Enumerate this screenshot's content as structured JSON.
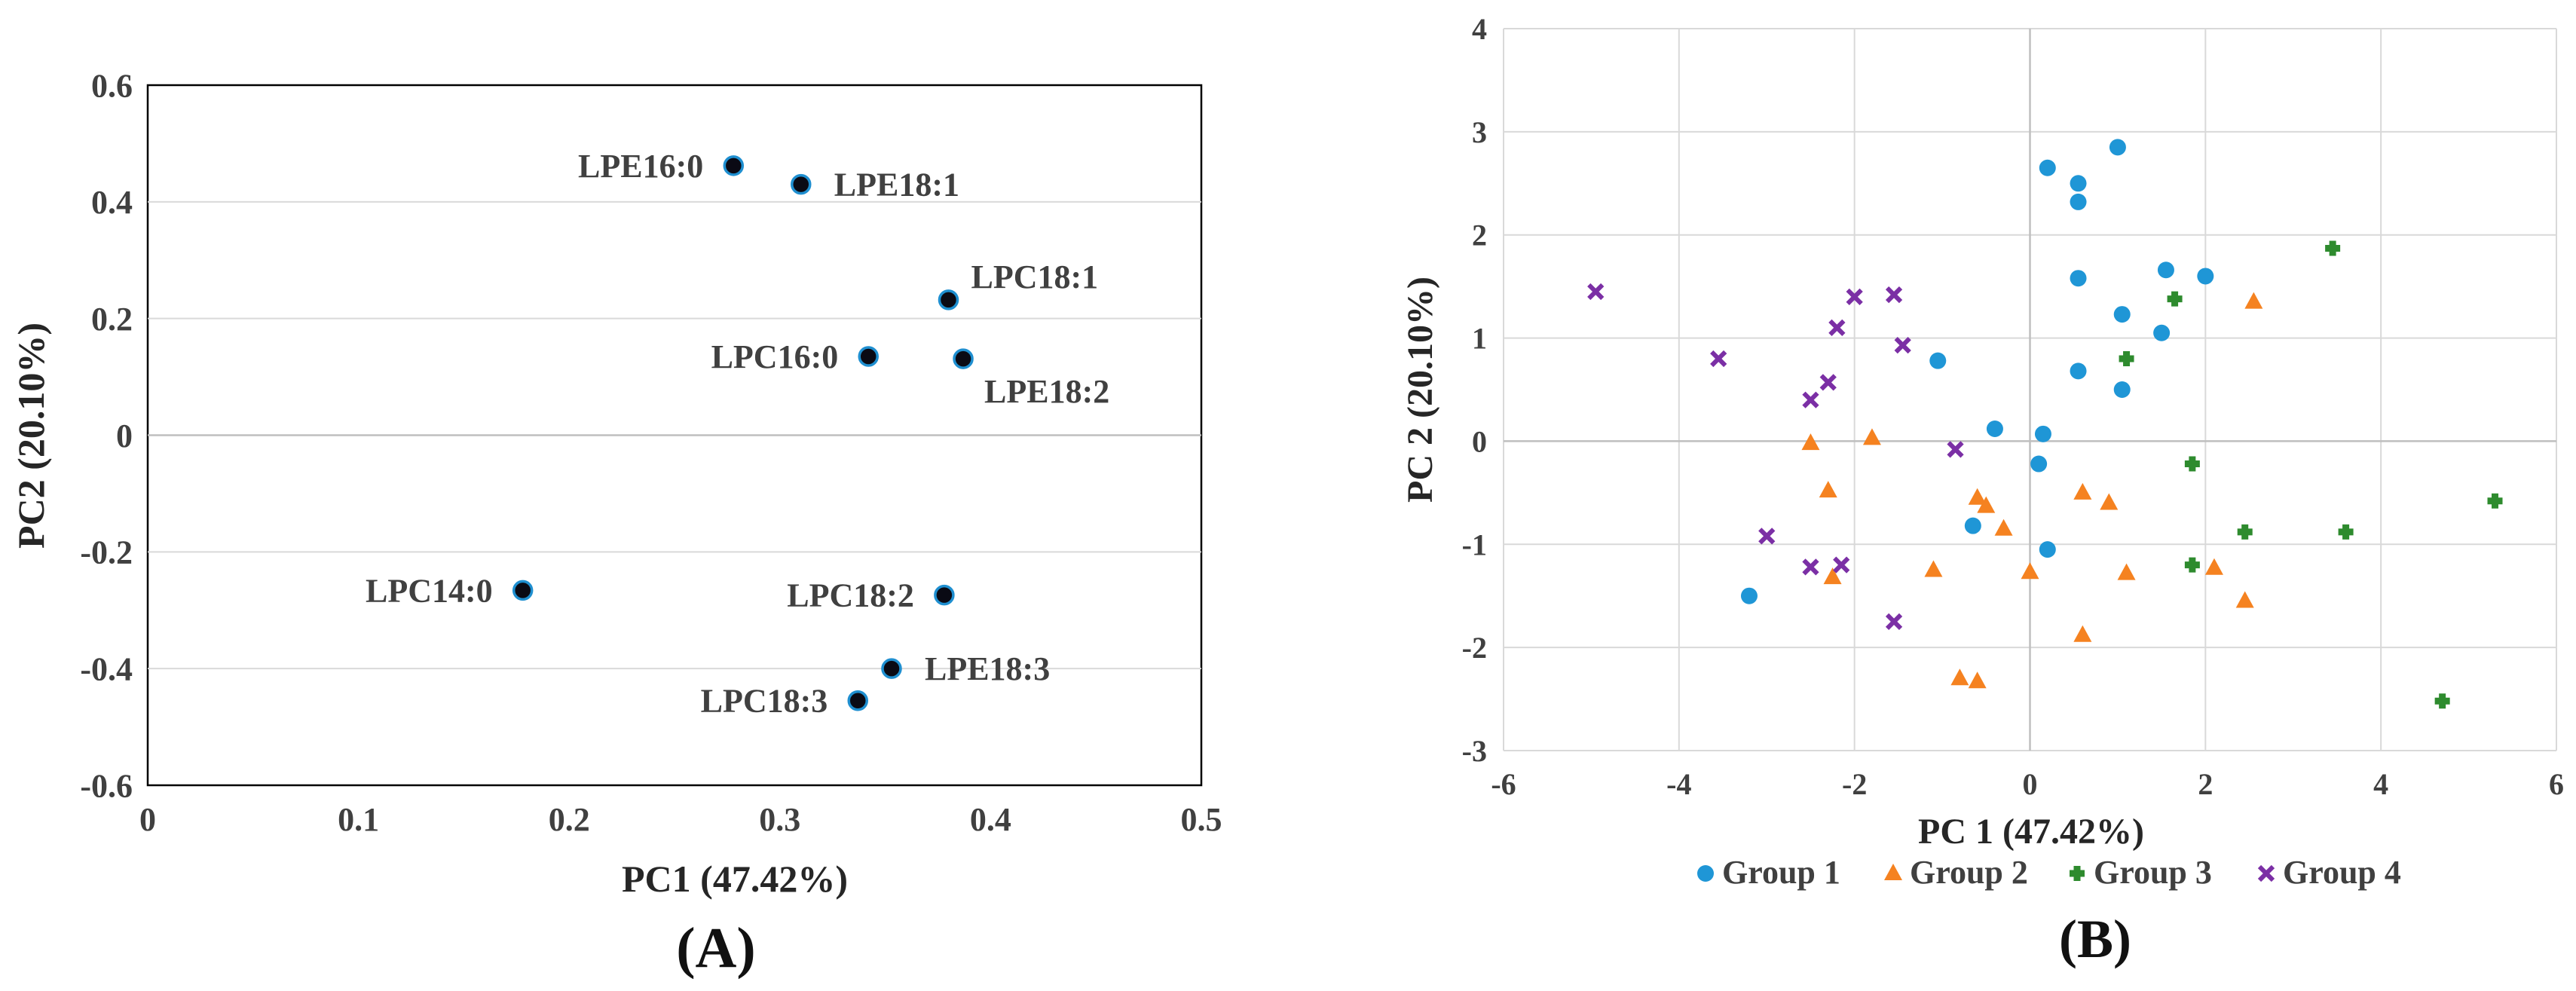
{
  "chart_data": [
    {
      "type": "scatter",
      "panel_label": "(A)",
      "xlabel": "PC1 (47.42%)",
      "ylabel": "PC2 (20.10%)",
      "xlim": [
        0,
        0.5
      ],
      "ylim": [
        -0.6,
        0.6
      ],
      "x_ticks": [
        0,
        0.1,
        0.2,
        0.3,
        0.4,
        0.5
      ],
      "x_tick_labels": [
        "0",
        "0.1",
        "0.2",
        "0.3",
        "0.4",
        "0.5"
      ],
      "y_ticks": [
        -0.6,
        -0.4,
        -0.2,
        0,
        0.2,
        0.4,
        0.6
      ],
      "y_tick_labels": [
        "-0.6",
        "-0.4",
        "-0.2",
        "0",
        "0.2",
        "0.4",
        "0.6"
      ],
      "grid": true,
      "marker_color": "#0a0a14",
      "marker_edge_color": "#1f8fd0",
      "points": [
        {
          "label": "LPE16:0",
          "x": 0.278,
          "y": 0.462,
          "label_side": "left"
        },
        {
          "label": "LPE18:1",
          "x": 0.31,
          "y": 0.43,
          "label_side": "right"
        },
        {
          "label": "LPC18:1",
          "x": 0.38,
          "y": 0.232,
          "label_side": "upper-right"
        },
        {
          "label": "LPC16:0",
          "x": 0.342,
          "y": 0.135,
          "label_side": "left"
        },
        {
          "label": "LPE18:2",
          "x": 0.387,
          "y": 0.131,
          "label_side": "lower-right"
        },
        {
          "label": "LPC14:0",
          "x": 0.178,
          "y": -0.266,
          "label_side": "left"
        },
        {
          "label": "LPC18:2",
          "x": 0.378,
          "y": -0.274,
          "label_side": "left"
        },
        {
          "label": "LPE18:3",
          "x": 0.353,
          "y": -0.4,
          "label_side": "right"
        },
        {
          "label": "LPC18:3",
          "x": 0.337,
          "y": -0.455,
          "label_side": "left"
        }
      ]
    },
    {
      "type": "scatter",
      "panel_label": "(B)",
      "xlabel": "PC 1 (47.42%)",
      "ylabel": "PC 2 (20.10%)",
      "xlim": [
        -6,
        6
      ],
      "ylim": [
        -3,
        4
      ],
      "x_ticks": [
        -6,
        -4,
        -2,
        0,
        2,
        4,
        6
      ],
      "x_tick_labels": [
        "-6",
        "-4",
        "-2",
        "0",
        "2",
        "4",
        "6"
      ],
      "y_ticks": [
        -3,
        -2,
        -1,
        0,
        1,
        2,
        3,
        4
      ],
      "y_tick_labels": [
        "-3",
        "-2",
        "-1",
        "0",
        "1",
        "2",
        "3",
        "4"
      ],
      "grid": true,
      "legend_position": "bottom",
      "series": [
        {
          "name": "Group 1",
          "marker": "circle",
          "color": "#1f96d6",
          "points": [
            [
              0.2,
              2.65
            ],
            [
              1.0,
              2.85
            ],
            [
              0.55,
              2.5
            ],
            [
              0.55,
              2.32
            ],
            [
              0.55,
              1.58
            ],
            [
              1.55,
              1.66
            ],
            [
              2.0,
              1.6
            ],
            [
              1.05,
              1.23
            ],
            [
              1.5,
              1.05
            ],
            [
              -1.05,
              0.78
            ],
            [
              0.55,
              0.68
            ],
            [
              1.05,
              0.5
            ],
            [
              -0.4,
              0.12
            ],
            [
              0.15,
              0.07
            ],
            [
              0.1,
              -0.22
            ],
            [
              -0.65,
              -0.82
            ],
            [
              0.2,
              -1.05
            ],
            [
              -3.2,
              -1.5
            ]
          ]
        },
        {
          "name": "Group 2",
          "marker": "triangle",
          "color": "#f58220",
          "points": [
            [
              2.55,
              1.35
            ],
            [
              -2.5,
              -0.02
            ],
            [
              -1.8,
              0.03
            ],
            [
              -2.3,
              -0.48
            ],
            [
              -0.6,
              -0.55
            ],
            [
              -0.5,
              -0.63
            ],
            [
              0.6,
              -0.5
            ],
            [
              0.9,
              -0.6
            ],
            [
              -0.3,
              -0.85
            ],
            [
              -1.1,
              -1.25
            ],
            [
              0.0,
              -1.27
            ],
            [
              -2.25,
              -1.32
            ],
            [
              1.1,
              -1.28
            ],
            [
              2.1,
              -1.23
            ],
            [
              2.45,
              -1.55
            ],
            [
              0.6,
              -1.88
            ],
            [
              -0.8,
              -2.3
            ],
            [
              -0.6,
              -2.33
            ]
          ]
        },
        {
          "name": "Group 3",
          "marker": "plus",
          "color": "#2e8b2e",
          "points": [
            [
              3.45,
              1.87
            ],
            [
              1.65,
              1.38
            ],
            [
              1.1,
              0.8
            ],
            [
              1.85,
              -0.22
            ],
            [
              2.45,
              -0.88
            ],
            [
              3.6,
              -0.88
            ],
            [
              5.3,
              -0.58
            ],
            [
              1.85,
              -1.2
            ],
            [
              4.7,
              -2.52
            ]
          ]
        },
        {
          "name": "Group 4",
          "marker": "x",
          "color": "#7b2fa5",
          "points": [
            [
              -4.95,
              1.45
            ],
            [
              -2.0,
              1.4
            ],
            [
              -1.55,
              1.42
            ],
            [
              -2.2,
              1.1
            ],
            [
              -1.45,
              0.93
            ],
            [
              -3.55,
              0.8
            ],
            [
              -2.3,
              0.57
            ],
            [
              -2.5,
              0.4
            ],
            [
              -0.85,
              -0.08
            ],
            [
              -3.0,
              -0.92
            ],
            [
              -2.5,
              -1.22
            ],
            [
              -2.15,
              -1.2
            ],
            [
              -1.55,
              -1.75
            ]
          ]
        }
      ]
    }
  ]
}
